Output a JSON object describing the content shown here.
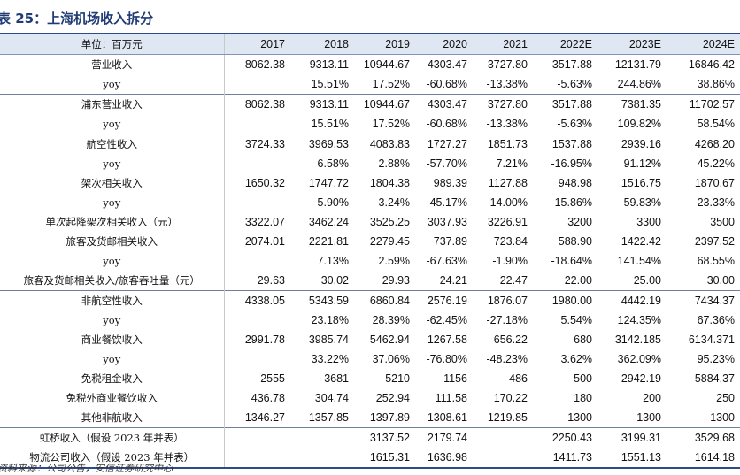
{
  "title": "表 25：上海机场收入拆分",
  "header": {
    "unit_label": "单位：百万元",
    "years": [
      "2017",
      "2018",
      "2019",
      "2020",
      "2021",
      "2022E",
      "2023E",
      "2024E"
    ]
  },
  "rows": [
    {
      "label": "营业收入",
      "values": [
        "8062.38",
        "9313.11",
        "10944.67",
        "4303.47",
        "3727.80",
        "3517.88",
        "12131.79",
        "16846.42"
      ],
      "sep": true
    },
    {
      "label": "yoy",
      "values": [
        "",
        "15.51%",
        "17.52%",
        "-60.68%",
        "-13.38%",
        "-5.63%",
        "244.86%",
        "38.86%"
      ],
      "sep": false
    },
    {
      "label": "浦东营业收入",
      "values": [
        "8062.38",
        "9313.11",
        "10944.67",
        "4303.47",
        "3727.80",
        "3517.88",
        "7381.35",
        "11702.57"
      ],
      "sep": true
    },
    {
      "label": "yoy",
      "values": [
        "",
        "15.51%",
        "17.52%",
        "-60.68%",
        "-13.38%",
        "-5.63%",
        "109.82%",
        "58.54%"
      ],
      "sep": false
    },
    {
      "label": "航空性收入",
      "values": [
        "3724.33",
        "3969.53",
        "4083.83",
        "1727.27",
        "1851.73",
        "1537.88",
        "2939.16",
        "4268.20"
      ],
      "sep": true
    },
    {
      "label": "yoy",
      "values": [
        "",
        "6.58%",
        "2.88%",
        "-57.70%",
        "7.21%",
        "-16.95%",
        "91.12%",
        "45.22%"
      ],
      "sep": false
    },
    {
      "label": "架次相关收入",
      "values": [
        "1650.32",
        "1747.72",
        "1804.38",
        "989.39",
        "1127.88",
        "948.98",
        "1516.75",
        "1870.67"
      ],
      "sep": false
    },
    {
      "label": "yoy",
      "values": [
        "",
        "5.90%",
        "3.24%",
        "-45.17%",
        "14.00%",
        "-15.86%",
        "59.83%",
        "23.33%"
      ],
      "sep": false
    },
    {
      "label": "单次起降架次相关收入（元）",
      "values": [
        "3322.07",
        "3462.24",
        "3525.25",
        "3037.93",
        "3226.91",
        "3200",
        "3300",
        "3500"
      ],
      "sep": false
    },
    {
      "label": "旅客及货邮相关收入",
      "values": [
        "2074.01",
        "2221.81",
        "2279.45",
        "737.89",
        "723.84",
        "588.90",
        "1422.42",
        "2397.52"
      ],
      "sep": false
    },
    {
      "label": "yoy",
      "values": [
        "",
        "7.13%",
        "2.59%",
        "-67.63%",
        "-1.90%",
        "-18.64%",
        "141.54%",
        "68.55%"
      ],
      "sep": false
    },
    {
      "label": "旅客及货邮相关收入/旅客吞吐量（元）",
      "values": [
        "29.63",
        "30.02",
        "29.93",
        "24.21",
        "22.47",
        "22.00",
        "25.00",
        "30.00"
      ],
      "sep": false
    },
    {
      "label": "非航空性收入",
      "values": [
        "4338.05",
        "5343.59",
        "6860.84",
        "2576.19",
        "1876.07",
        "1980.00",
        "4442.19",
        "7434.37"
      ],
      "sep": true
    },
    {
      "label": "yoy",
      "values": [
        "",
        "23.18%",
        "28.39%",
        "-62.45%",
        "-27.18%",
        "5.54%",
        "124.35%",
        "67.36%"
      ],
      "sep": false
    },
    {
      "label": "商业餐饮收入",
      "values": [
        "2991.78",
        "3985.74",
        "5462.94",
        "1267.58",
        "656.22",
        "680",
        "3142.185",
        "6134.371"
      ],
      "sep": false
    },
    {
      "label": "yoy",
      "values": [
        "",
        "33.22%",
        "37.06%",
        "-76.80%",
        "-48.23%",
        "3.62%",
        "362.09%",
        "95.23%"
      ],
      "sep": false
    },
    {
      "label": "免税租金收入",
      "values": [
        "2555",
        "3681",
        "5210",
        "1156",
        "486",
        "500",
        "2942.19",
        "5884.37"
      ],
      "sep": false
    },
    {
      "label": "免税外商业餐饮收入",
      "values": [
        "436.78",
        "304.74",
        "252.94",
        "111.58",
        "170.22",
        "180",
        "200",
        "250"
      ],
      "sep": false
    },
    {
      "label": "其他非航收入",
      "values": [
        "1346.27",
        "1357.85",
        "1397.89",
        "1308.61",
        "1219.85",
        "1300",
        "1300",
        "1300"
      ],
      "sep": false
    },
    {
      "label": "虹桥收入（假设 2023 年并表）",
      "values": [
        "",
        "",
        "3137.52",
        "2179.74",
        "",
        "2250.43",
        "3199.31",
        "3529.68"
      ],
      "sep": true
    },
    {
      "label": "物流公司收入（假设 2023 年并表）",
      "values": [
        "",
        "",
        "1615.31",
        "1636.98",
        "",
        "1411.73",
        "1551.13",
        "1614.18"
      ],
      "sep": false
    }
  ],
  "source": "资料来源：公司公告，安信证券研究中心"
}
